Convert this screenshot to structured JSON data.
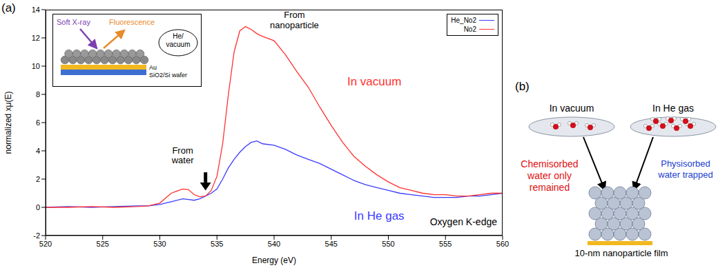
{
  "chart_data": {
    "type": "line",
    "label": "(a)",
    "x_label": "Energy (eV)",
    "y_label": "normalized xμ(E)",
    "x": [
      520,
      522,
      524,
      526,
      528,
      529,
      530,
      531,
      532,
      532.5,
      533,
      533.5,
      534,
      534.5,
      535,
      535.5,
      536,
      536.5,
      537,
      537.5,
      538,
      538.5,
      539,
      540,
      541,
      542,
      543,
      544,
      545,
      546,
      547,
      548,
      549,
      550,
      551,
      552,
      553,
      554,
      555,
      556,
      557,
      558,
      559,
      560
    ],
    "series": [
      {
        "name": "He_No2",
        "color": "#3b3bff",
        "values": [
          0,
          0.05,
          0,
          0.05,
          0.1,
          0.1,
          0.2,
          0.4,
          0.6,
          0.55,
          0.5,
          0.6,
          0.8,
          1.0,
          1.3,
          2.0,
          2.8,
          3.4,
          3.9,
          4.3,
          4.6,
          4.7,
          4.5,
          4.4,
          4.1,
          3.7,
          3.4,
          3.1,
          2.7,
          2.3,
          1.9,
          1.6,
          1.4,
          1.2,
          1.0,
          0.9,
          0.8,
          0.7,
          0.7,
          0.7,
          0.8,
          0.8,
          0.9,
          1.0
        ]
      },
      {
        "name": "No2",
        "color": "#ff3030",
        "values": [
          0,
          0,
          0.05,
          0,
          0.05,
          0.1,
          0.3,
          1.0,
          1.3,
          1.25,
          0.9,
          0.75,
          0.8,
          1.2,
          2.2,
          4.5,
          8,
          11,
          12.5,
          12.8,
          12.6,
          12.3,
          12.1,
          11.8,
          10.8,
          9.6,
          8.5,
          7.1,
          5.8,
          4.6,
          3.6,
          2.9,
          2.3,
          1.8,
          1.4,
          1.2,
          1.0,
          0.9,
          0.9,
          0.8,
          0.8,
          0.9,
          1.0,
          1.0
        ]
      }
    ],
    "xlim": [
      520,
      560
    ],
    "xticks": [
      520,
      525,
      530,
      535,
      540,
      545,
      550,
      555,
      560
    ],
    "ylim": [
      -2,
      14
    ],
    "yticks": [
      -2,
      0,
      2,
      4,
      6,
      8,
      10,
      12,
      14
    ],
    "grid": false,
    "legend": "top-right",
    "annotations": {
      "nanoparticle": "From nanoparticle",
      "water": "From water",
      "vacuum": "In vacuum",
      "he": "In He gas",
      "edge": "Oxygen K-edge"
    }
  },
  "diagram": {
    "inset": {
      "soft_xray": "Soft X-ray",
      "fluorescence": "Fluorescence",
      "ambient": "He/ vacuum",
      "gold": "Au",
      "substrate": "SiO2/Si wafer"
    },
    "panel_b": {
      "label": "(b)",
      "left_title": "In vacuum",
      "right_title": "In He gas",
      "left_note": "Chemisorbed water only remained",
      "right_note": "Physisorbed water trapped",
      "film": "10-nm nanoparticle film"
    }
  }
}
